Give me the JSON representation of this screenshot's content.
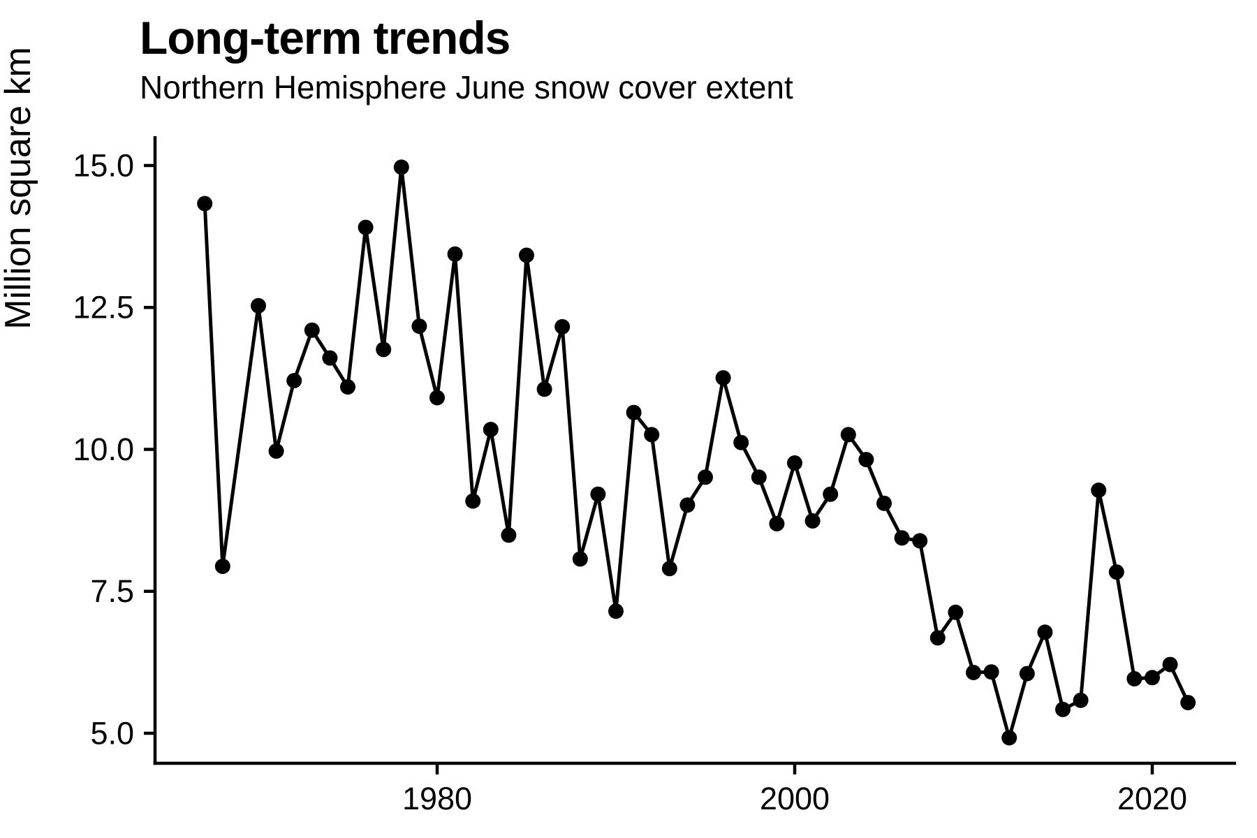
{
  "header": {
    "title": "Long-term trends",
    "subtitle": "Northern Hemisphere June snow cover extent"
  },
  "chart_data": {
    "type": "line",
    "title": "Long-term trends",
    "subtitle": "Northern Hemisphere June snow cover extent",
    "xlabel": "",
    "ylabel": "Million square km",
    "series_name": "June snow cover extent",
    "x": [
      1967,
      1968,
      1970,
      1971,
      1972,
      1973,
      1974,
      1975,
      1976,
      1977,
      1978,
      1979,
      1980,
      1981,
      1982,
      1983,
      1984,
      1985,
      1986,
      1987,
      1988,
      1989,
      1990,
      1991,
      1992,
      1993,
      1994,
      1995,
      1996,
      1997,
      1998,
      1999,
      2000,
      2001,
      2002,
      2003,
      2004,
      2005,
      2006,
      2007,
      2008,
      2009,
      2010,
      2011,
      2012,
      2013,
      2014,
      2015,
      2016,
      2017,
      2018,
      2019,
      2020,
      2021,
      2022
    ],
    "y": [
      14.33,
      7.94,
      12.53,
      9.97,
      11.21,
      12.1,
      11.61,
      11.1,
      13.91,
      11.76,
      14.97,
      12.17,
      10.91,
      13.44,
      9.09,
      10.35,
      8.49,
      13.42,
      11.06,
      12.16,
      8.07,
      9.21,
      7.15,
      10.65,
      10.26,
      7.9,
      9.02,
      9.51,
      11.26,
      10.12,
      9.51,
      8.69,
      9.76,
      8.74,
      9.21,
      10.26,
      9.82,
      9.05,
      8.44,
      8.39,
      6.68,
      7.13,
      6.07,
      6.08,
      4.92,
      6.05,
      6.78,
      5.42,
      5.58,
      9.28,
      7.84,
      5.96,
      5.98,
      6.21,
      5.54
    ],
    "missing_years": [
      1969
    ],
    "yticks": {
      "values": [
        15.0,
        12.5,
        10.0,
        7.5,
        5.0
      ],
      "labels": [
        "15.0",
        "12.5",
        "10.0",
        "7.5",
        "5.0"
      ]
    },
    "xticks": {
      "values": [
        1980,
        2000,
        2020
      ],
      "labels": [
        "1980",
        "2000",
        "2020"
      ]
    },
    "xlim": [
      1964.2,
      2024.7
    ],
    "ylim": [
      4.47,
      15.52
    ],
    "grid": false,
    "legend": null,
    "marker": "filled-circle",
    "line_color": "#000000",
    "point_color": "#000000",
    "axis_color": "#000000",
    "background": "#FFFFFF"
  }
}
